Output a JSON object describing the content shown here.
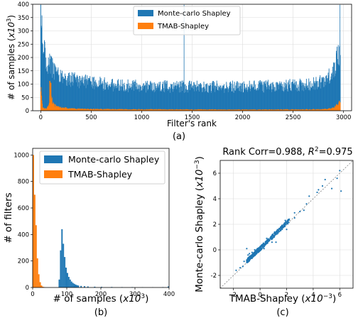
{
  "colors": {
    "mc": "#1f77b4",
    "tmab": "#ff7f0e",
    "grid": "#dcdcdc",
    "axis": "#000000",
    "diag": "#7f7f7f"
  },
  "chart_data": [
    {
      "id": "a",
      "type": "bar",
      "caption": "(a)",
      "xlabel": "Filter's rank",
      "ylabel": "# of samples (x10^3)",
      "ylabel_parts": {
        "main": "# of samples (",
        "var": "x10",
        "exp": "3",
        "close": ")"
      },
      "xlim": [
        -80,
        3080
      ],
      "ylim": [
        0,
        400
      ],
      "xticks": [
        0,
        500,
        1000,
        1500,
        2000,
        2500,
        3000
      ],
      "yticks": [
        0,
        50,
        100,
        150,
        200,
        250,
        300,
        350,
        400
      ],
      "grid": true,
      "legend_position": "top-center",
      "series": [
        {
          "name": "Monte-carlo Shapley",
          "x": [
            0,
            20,
            50,
            100,
            150,
            200,
            300,
            400,
            500,
            700,
            900,
            1100,
            1300,
            1500,
            1700,
            1900,
            2100,
            2300,
            2500,
            2600,
            2700,
            2800,
            2850,
            2900,
            2950,
            2970
          ],
          "values": [
            330,
            230,
            185,
            160,
            140,
            125,
            112,
            105,
            100,
            92,
            88,
            87,
            86,
            85,
            85,
            86,
            87,
            88,
            90,
            92,
            96,
            105,
            118,
            140,
            200,
            240
          ],
          "spikes": [
            [
              0,
              398
            ],
            [
              8,
              310
            ],
            [
              1420,
              398
            ],
            [
              2965,
              398
            ]
          ]
        },
        {
          "name": "TMAB-Shapley",
          "x": [
            0,
            20,
            40,
            60,
            80,
            95,
            110,
            130,
            160,
            200,
            300,
            500,
            1000,
            2000,
            2800,
            2900,
            2960
          ],
          "values": [
            90,
            12,
            8,
            10,
            25,
            70,
            40,
            22,
            16,
            12,
            8,
            6,
            5,
            4,
            5,
            10,
            30
          ],
          "spikes": [
            [
              90,
              112
            ],
            [
              100,
              105
            ]
          ]
        }
      ]
    },
    {
      "id": "b",
      "type": "bar",
      "caption": "(b)",
      "xlabel": "# of samples (x10^3)",
      "xlabel_parts": {
        "main": "# of samples (",
        "var": "x10",
        "exp": "3",
        "close": ")"
      },
      "ylabel": "# of filters",
      "xlim": [
        0,
        400
      ],
      "ylim": [
        0,
        1050
      ],
      "xticks": [
        0,
        100,
        200,
        300,
        400
      ],
      "yticks": [
        0,
        200,
        400,
        600,
        800,
        1000
      ],
      "grid": false,
      "legend_position": "top-right",
      "series": [
        {
          "name": "Monte-carlo Shapley",
          "x": [
            76,
            80,
            84,
            88,
            92,
            96,
            100,
            104,
            108,
            112,
            116,
            120,
            124,
            128,
            132,
            140,
            150,
            160,
            180,
            200,
            230,
            260,
            290,
            320,
            350,
            380,
            396
          ],
          "values": [
            60,
            280,
            440,
            330,
            230,
            150,
            110,
            80,
            60,
            45,
            35,
            28,
            22,
            18,
            15,
            12,
            10,
            8,
            6,
            5,
            4,
            3,
            3,
            2,
            2,
            3,
            8
          ]
        },
        {
          "name": "TMAB-Shapley",
          "x": [
            0,
            4,
            8,
            12,
            16,
            20,
            24,
            28,
            32
          ],
          "values": [
            1000,
            700,
            470,
            220,
            100,
            40,
            15,
            6,
            3
          ]
        }
      ]
    },
    {
      "id": "c",
      "type": "scatter",
      "caption": "(c)",
      "title": "Rank Corr=0.988, R^2=0.975",
      "title_parts": {
        "main": "Rank Corr=0.988, ",
        "var": "R",
        "exp": "2",
        "tail": "=0.975"
      },
      "xlabel": "TMAB-Shapley (x10^-3)",
      "xlabel_parts": {
        "main": "TMAB-Shapley (",
        "var": "x10",
        "exp": "−3",
        "close": ")"
      },
      "ylabel": "Monte-carlo Shapley (x10^-3)",
      "ylabel_parts": {
        "main": "Monte-carlo Shapley (",
        "var": "x10",
        "exp": "−3",
        "close": ")"
      },
      "xlim": [
        -3,
        7
      ],
      "ylim": [
        -3,
        7
      ],
      "xticks": [
        -2,
        0,
        2,
        4,
        6
      ],
      "yticks": [
        -2,
        0,
        2,
        4,
        6
      ],
      "grid": true,
      "diagonal": "y=x",
      "points": [
        [
          -1.5,
          -1.4
        ],
        [
          -1.2,
          -0.9
        ],
        [
          -1.0,
          -0.8
        ],
        [
          -0.9,
          -0.4
        ],
        [
          -0.8,
          -0.3
        ],
        [
          -0.6,
          -0.2
        ],
        [
          -0.5,
          -0.5
        ],
        [
          -0.4,
          0.0
        ],
        [
          -0.3,
          -0.2
        ],
        [
          -0.2,
          0.1
        ],
        [
          0.0,
          0.2
        ],
        [
          0.2,
          0.3
        ],
        [
          0.4,
          0.5
        ],
        [
          0.6,
          0.7
        ],
        [
          0.8,
          0.9
        ],
        [
          1.0,
          1.1
        ],
        [
          1.2,
          1.2
        ],
        [
          1.4,
          1.5
        ],
        [
          1.6,
          1.7
        ],
        [
          1.8,
          2.0
        ],
        [
          2.0,
          2.1
        ],
        [
          2.2,
          2.4
        ],
        [
          2.6,
          2.5
        ],
        [
          3.0,
          3.0
        ],
        [
          3.5,
          3.6
        ],
        [
          3.7,
          4.2
        ],
        [
          4.3,
          4.5
        ],
        [
          4.7,
          5.0
        ],
        [
          4.9,
          5.5
        ],
        [
          5.4,
          4.8
        ],
        [
          5.8,
          5.6
        ],
        [
          6.0,
          6.2
        ],
        [
          1.2,
          0.6
        ],
        [
          0.5,
          0.9
        ],
        [
          -1.8,
          -1.6
        ],
        [
          2.0,
          1.6
        ],
        [
          1.1,
          1.4
        ],
        [
          -0.7,
          -0.6
        ],
        [
          0.9,
          0.6
        ],
        [
          -1.0,
          0.1
        ],
        [
          3.3,
          3.1
        ],
        [
          2.6,
          2.9
        ],
        [
          6.1,
          4.6
        ],
        [
          4.4,
          4.7
        ],
        [
          0.3,
          0.1
        ],
        [
          -0.1,
          -0.1
        ],
        [
          1.9,
          2.3
        ],
        [
          -1.3,
          -1.3
        ]
      ]
    }
  ]
}
